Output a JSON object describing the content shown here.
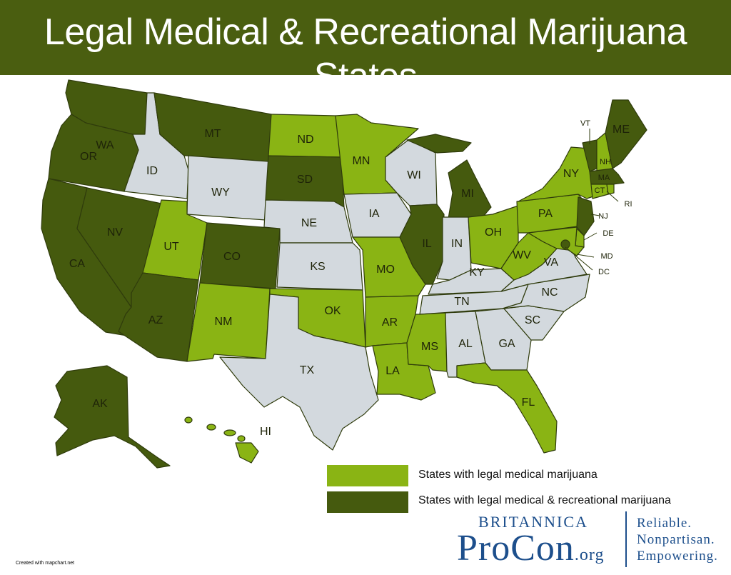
{
  "title": "Legal Medical & Recreational Marijuana States",
  "colors": {
    "header": "#4a5e10",
    "medical": "#8ab414",
    "recreational": "#455a0e",
    "none": "#d3d9de",
    "brand": "#1d4f8c"
  },
  "legend": {
    "medical": "States with legal medical marijuana",
    "recreational": "States with legal medical & recreational marijuana"
  },
  "states": {
    "WA": {
      "label": "WA",
      "status": "recreational"
    },
    "OR": {
      "label": "OR",
      "status": "recreational"
    },
    "CA": {
      "label": "CA",
      "status": "recreational"
    },
    "NV": {
      "label": "NV",
      "status": "recreational"
    },
    "ID": {
      "label": "ID",
      "status": "none"
    },
    "MT": {
      "label": "MT",
      "status": "recreational"
    },
    "WY": {
      "label": "WY",
      "status": "none"
    },
    "UT": {
      "label": "UT",
      "status": "medical"
    },
    "AZ": {
      "label": "AZ",
      "status": "recreational"
    },
    "CO": {
      "label": "CO",
      "status": "recreational"
    },
    "NM": {
      "label": "NM",
      "status": "medical"
    },
    "ND": {
      "label": "ND",
      "status": "medical"
    },
    "SD": {
      "label": "SD",
      "status": "recreational"
    },
    "NE": {
      "label": "NE",
      "status": "none"
    },
    "KS": {
      "label": "KS",
      "status": "none"
    },
    "OK": {
      "label": "OK",
      "status": "medical"
    },
    "TX": {
      "label": "TX",
      "status": "none"
    },
    "MN": {
      "label": "MN",
      "status": "medical"
    },
    "IA": {
      "label": "IA",
      "status": "none"
    },
    "MO": {
      "label": "MO",
      "status": "medical"
    },
    "AR": {
      "label": "AR",
      "status": "medical"
    },
    "LA": {
      "label": "LA",
      "status": "medical"
    },
    "WI": {
      "label": "WI",
      "status": "none"
    },
    "IL": {
      "label": "IL",
      "status": "recreational"
    },
    "MI": {
      "label": "MI",
      "status": "recreational"
    },
    "IN": {
      "label": "IN",
      "status": "none"
    },
    "OH": {
      "label": "OH",
      "status": "medical"
    },
    "KY": {
      "label": "KY",
      "status": "none"
    },
    "TN": {
      "label": "TN",
      "status": "none"
    },
    "MS": {
      "label": "MS",
      "status": "medical"
    },
    "AL": {
      "label": "AL",
      "status": "none"
    },
    "GA": {
      "label": "GA",
      "status": "none"
    },
    "FL": {
      "label": "FL",
      "status": "medical"
    },
    "SC": {
      "label": "SC",
      "status": "none"
    },
    "NC": {
      "label": "NC",
      "status": "none"
    },
    "VA": {
      "label": "VA",
      "status": "none"
    },
    "WV": {
      "label": "WV",
      "status": "medical"
    },
    "PA": {
      "label": "PA",
      "status": "medical"
    },
    "NY": {
      "label": "NY",
      "status": "medical"
    },
    "NJ": {
      "label": "NJ",
      "status": "recreational"
    },
    "DE": {
      "label": "DE",
      "status": "medical"
    },
    "MD": {
      "label": "MD",
      "status": "medical"
    },
    "DC": {
      "label": "DC",
      "status": "recreational"
    },
    "CT": {
      "label": "CT",
      "status": "medical"
    },
    "RI": {
      "label": "RI",
      "status": "medical"
    },
    "MA": {
      "label": "MA",
      "status": "recreational"
    },
    "VT": {
      "label": "VT",
      "status": "recreational"
    },
    "NH": {
      "label": "NH",
      "status": "medical"
    },
    "ME": {
      "label": "ME",
      "status": "recreational"
    },
    "AK": {
      "label": "AK",
      "status": "recreational"
    },
    "HI": {
      "label": "HI",
      "status": "medical"
    }
  },
  "brand": {
    "top": "BRITANNICA",
    "main": "ProCon",
    "suffix": ".org",
    "taglines": [
      "Reliable.",
      "Nonpartisan.",
      "Empowering."
    ]
  },
  "credit": "Created with mapchart.net"
}
